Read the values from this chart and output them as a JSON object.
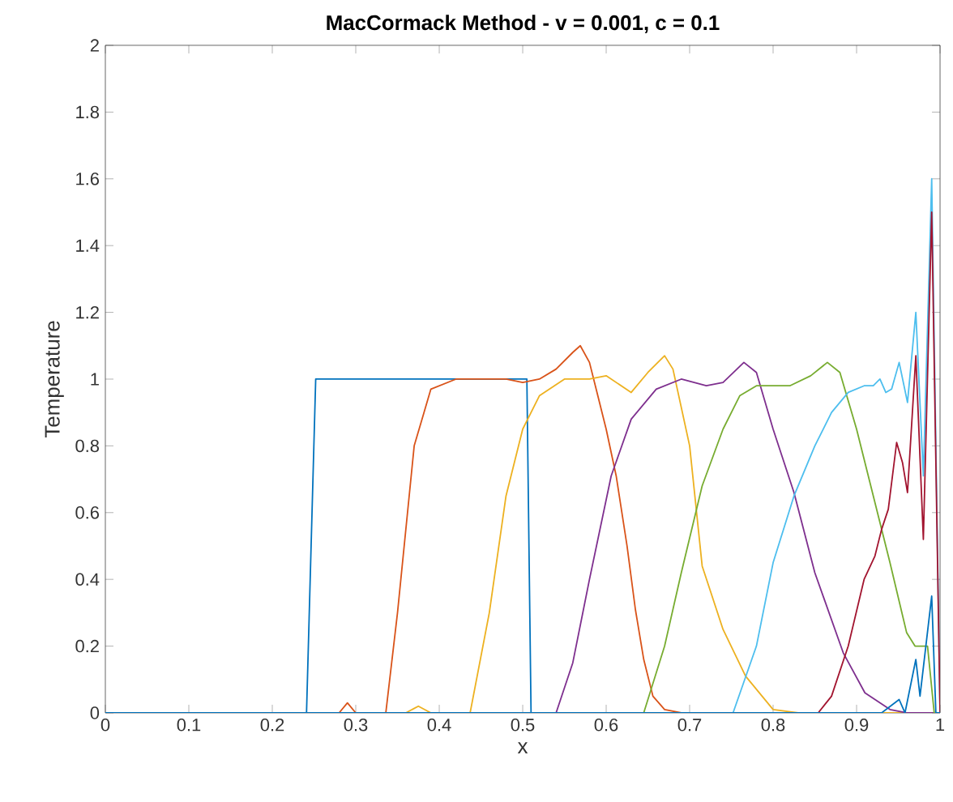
{
  "chart_data": {
    "type": "line",
    "title": "MacCormack Method - v = 0.001, c = 0.1",
    "xlabel": "x",
    "ylabel": "Temperature",
    "xlim": [
      0,
      1
    ],
    "ylim": [
      0,
      2
    ],
    "xticks": [
      0,
      0.1,
      0.2,
      0.3,
      0.4,
      0.5,
      0.6,
      0.7,
      0.8,
      0.9,
      1
    ],
    "yticks": [
      0,
      0.2,
      0.4,
      0.6,
      0.8,
      1,
      1.2,
      1.4,
      1.6,
      1.8,
      2
    ],
    "grid": false,
    "marker": "none",
    "line_style": "solid",
    "series": [
      {
        "color": "#0072bd",
        "x": [
          0,
          0.241,
          0.252,
          0.5,
          0.505,
          0.51,
          1
        ],
        "values": [
          0,
          0,
          1,
          1,
          1,
          0,
          0
        ]
      },
      {
        "color": "#d95319",
        "x": [
          0,
          0.28,
          0.29,
          0.3,
          0.336,
          0.35,
          0.37,
          0.39,
          0.42,
          0.48,
          0.5,
          0.52,
          0.54,
          0.56,
          0.569,
          0.58,
          0.59,
          0.6,
          0.612,
          0.625,
          0.635,
          0.645,
          0.656,
          0.67,
          0.69,
          1
        ],
        "values": [
          0,
          0,
          0.03,
          0,
          0,
          0.3,
          0.8,
          0.97,
          1,
          1,
          0.99,
          1,
          1.03,
          1.08,
          1.1,
          1.05,
          0.95,
          0.85,
          0.71,
          0.5,
          0.31,
          0.16,
          0.05,
          0.01,
          0,
          0
        ]
      },
      {
        "color": "#edb120",
        "x": [
          0,
          0.36,
          0.375,
          0.39,
          0.437,
          0.46,
          0.48,
          0.5,
          0.52,
          0.55,
          0.58,
          0.6,
          0.63,
          0.65,
          0.67,
          0.68,
          0.7,
          0.715,
          0.74,
          0.767,
          0.8,
          0.83,
          1
        ],
        "values": [
          0,
          0,
          0.02,
          0,
          0,
          0.3,
          0.65,
          0.85,
          0.95,
          1,
          1,
          1.01,
          0.96,
          1.02,
          1.07,
          1.03,
          0.8,
          0.44,
          0.25,
          0.11,
          0.01,
          0,
          0
        ]
      },
      {
        "color": "#7e2f8e",
        "x": [
          0,
          0.54,
          0.56,
          0.58,
          0.606,
          0.63,
          0.66,
          0.69,
          0.72,
          0.74,
          0.765,
          0.78,
          0.8,
          0.825,
          0.85,
          0.884,
          0.91,
          0.94,
          0.96,
          1
        ],
        "values": [
          0,
          0,
          0.15,
          0.4,
          0.71,
          0.88,
          0.97,
          1,
          0.98,
          0.99,
          1.05,
          1.02,
          0.85,
          0.66,
          0.42,
          0.18,
          0.06,
          0.01,
          0,
          0
        ]
      },
      {
        "color": "#77ac30",
        "x": [
          0,
          0.645,
          0.67,
          0.69,
          0.715,
          0.74,
          0.76,
          0.78,
          0.82,
          0.845,
          0.865,
          0.88,
          0.9,
          0.917,
          0.94,
          0.96,
          0.97,
          0.985,
          0.993,
          1
        ],
        "values": [
          0,
          0,
          0.2,
          0.42,
          0.68,
          0.85,
          0.95,
          0.98,
          0.98,
          1.01,
          1.05,
          1.02,
          0.85,
          0.68,
          0.45,
          0.24,
          0.2,
          0.2,
          0,
          0
        ]
      },
      {
        "color": "#4dbeee",
        "x": [
          0,
          0.752,
          0.78,
          0.8,
          0.825,
          0.85,
          0.87,
          0.89,
          0.909,
          0.92,
          0.928,
          0.935,
          0.942,
          0.951,
          0.961,
          0.971,
          0.98,
          0.99,
          1
        ],
        "values": [
          0,
          0,
          0.2,
          0.45,
          0.65,
          0.8,
          0.9,
          0.96,
          0.98,
          0.98,
          1,
          0.96,
          0.97,
          1.05,
          0.93,
          1.2,
          0.71,
          1.6,
          0
        ]
      },
      {
        "color": "#a2142f",
        "x": [
          0,
          0.854,
          0.87,
          0.89,
          0.909,
          0.922,
          0.93,
          0.938,
          0.948,
          0.955,
          0.961,
          0.971,
          0.98,
          0.99,
          1
        ],
        "values": [
          0,
          0,
          0.05,
          0.2,
          0.4,
          0.47,
          0.55,
          0.61,
          0.81,
          0.75,
          0.66,
          1.07,
          0.52,
          1.5,
          0
        ]
      },
      {
        "color": "#0072bd",
        "x": [
          0,
          0.93,
          0.951,
          0.958,
          0.971,
          0.976,
          0.99,
          0.995,
          1
        ],
        "values": [
          0,
          0,
          0.04,
          0,
          0.16,
          0.05,
          0.35,
          0,
          0
        ]
      }
    ]
  }
}
